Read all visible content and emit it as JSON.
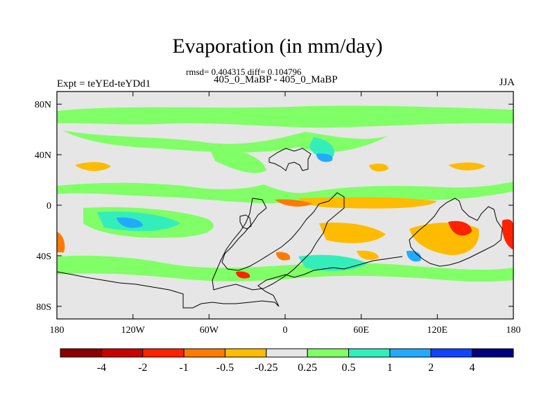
{
  "title": "Evaporation (in mm/day)",
  "stats": "rmsd= 0.404315 diff= 0.104796",
  "subtitle": "405_0_MaBP - 405_0_MaBP",
  "left_label": "Expt = teYEd-teYDd1",
  "right_label": "JJA",
  "map": {
    "background_color": "#e6e6e6",
    "lat_ticks": [
      {
        "value": 80,
        "label": "80N"
      },
      {
        "value": 40,
        "label": "40N"
      },
      {
        "value": 0,
        "label": "0"
      },
      {
        "value": -40,
        "label": "40S"
      },
      {
        "value": -80,
        "label": "80S"
      }
    ],
    "lon_ticks": [
      {
        "value": -180,
        "label": "180"
      },
      {
        "value": -120,
        "label": "120W"
      },
      {
        "value": -60,
        "label": "60W"
      },
      {
        "value": 0,
        "label": "0"
      },
      {
        "value": 60,
        "label": "60E"
      },
      {
        "value": 120,
        "label": "120E"
      },
      {
        "value": 180,
        "label": "180"
      }
    ],
    "lon_range": [
      -180,
      180
    ],
    "lat_range": [
      -90,
      90
    ]
  },
  "colorbar": {
    "colors": [
      "#8b0000",
      "#c80000",
      "#ff2200",
      "#ff7a00",
      "#ffbb00",
      "#e6e6e6",
      "#80ff66",
      "#33eebb",
      "#22aaff",
      "#1144ff",
      "#000080"
    ],
    "labels": [
      "-4",
      "-2",
      "-1",
      "-0.5",
      "-0.25",
      "0.25",
      "0.5",
      "1",
      "2",
      "4"
    ]
  }
}
